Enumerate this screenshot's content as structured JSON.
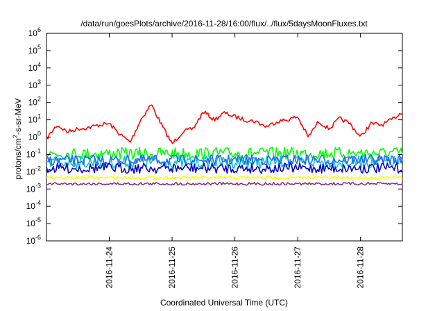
{
  "chart_data": {
    "type": "line",
    "title": "/data/run/goesPlots/archive/2016-11-28/16:00/flux/../flux/5daysMoonFluxes.txt",
    "xlabel": "Coordinated Universal Time (UTC)",
    "ylabel": {
      "main": "protons/cm",
      "sup": "2",
      "rest": "-s-sr-MeV"
    },
    "x_range": [
      "2016-11-23T00:00",
      "2016-11-28T16:00"
    ],
    "x_ticks": [
      "2016-11-24",
      "2016-11-25",
      "2016-11-26",
      "2016-11-27",
      "2016-11-28"
    ],
    "y_scale": "log",
    "ylim": [
      1e-06,
      1000000.0
    ],
    "y_ticks": [
      {
        "base": "10",
        "exp": "-6"
      },
      {
        "base": "10",
        "exp": "-5"
      },
      {
        "base": "10",
        "exp": "-4"
      },
      {
        "base": "10",
        "exp": "-3"
      },
      {
        "base": "10",
        "exp": "-2"
      },
      {
        "base": "10",
        "exp": "-1"
      },
      {
        "base": "10",
        "exp": "0"
      },
      {
        "base": "10",
        "exp": "1"
      },
      {
        "base": "10",
        "exp": "2"
      },
      {
        "base": "10",
        "exp": "3"
      },
      {
        "base": "10",
        "exp": "4"
      },
      {
        "base": "10",
        "exp": "5"
      },
      {
        "base": "10",
        "exp": "6"
      }
    ],
    "grid": false,
    "legend": "none",
    "series": [
      {
        "color": "#ff0000",
        "x": [
          "2016-11-23T00:00",
          "2016-11-23T04:00",
          "2016-11-23T08:00",
          "2016-11-23T12:00",
          "2016-11-23T16:00",
          "2016-11-23T20:00",
          "2016-11-24T00:00",
          "2016-11-24T04:00",
          "2016-11-24T08:00",
          "2016-11-24T12:00",
          "2016-11-24T16:00",
          "2016-11-24T20:00",
          "2016-11-25T00:00",
          "2016-11-25T04:00",
          "2016-11-25T08:00",
          "2016-11-25T12:00",
          "2016-11-25T16:00",
          "2016-11-25T20:00",
          "2016-11-26T00:00",
          "2016-11-26T04:00",
          "2016-11-26T08:00",
          "2016-11-26T12:00",
          "2016-11-26T16:00",
          "2016-11-26T20:00",
          "2016-11-27T00:00",
          "2016-11-27T04:00",
          "2016-11-27T08:00",
          "2016-11-27T12:00",
          "2016-11-27T16:00",
          "2016-11-27T20:00",
          "2016-11-28T00:00",
          "2016-11-28T04:00",
          "2016-11-28T08:00",
          "2016-11-28T12:00",
          "2016-11-28T16:00"
        ],
        "values": [
          0.8,
          5,
          2,
          3,
          3.5,
          5,
          6,
          1.5,
          0.5,
          10,
          80,
          5,
          0.4,
          2,
          3,
          30,
          10,
          25,
          15,
          10,
          8,
          4,
          8,
          10,
          15,
          1,
          8,
          3,
          12,
          6,
          1,
          6,
          5,
          10,
          30
        ]
      },
      {
        "color": "#00ff00",
        "x": [
          "2016-11-23T00:00",
          "2016-11-28T16:00"
        ],
        "values": [
          0.11,
          0.12
        ]
      },
      {
        "color": "#00c8c8",
        "x": [
          "2016-11-23T00:00",
          "2016-11-28T16:00"
        ],
        "values": [
          0.035,
          0.036
        ]
      },
      {
        "color": "#2266ff",
        "x": [
          "2016-11-23T00:00",
          "2016-11-28T16:00"
        ],
        "values": [
          0.045,
          0.05
        ]
      },
      {
        "color": "#0000cc",
        "x": [
          "2016-11-23T00:00",
          "2016-11-28T16:00"
        ],
        "values": [
          0.016,
          0.016
        ]
      },
      {
        "color": "#ffff00",
        "x": [
          "2016-11-23T00:00",
          "2016-11-28T16:00"
        ],
        "values": [
          0.0045,
          0.0045
        ]
      },
      {
        "color": "#883377",
        "x": [
          "2016-11-23T00:00",
          "2016-11-28T16:00"
        ],
        "values": [
          0.002,
          0.002
        ]
      }
    ]
  }
}
